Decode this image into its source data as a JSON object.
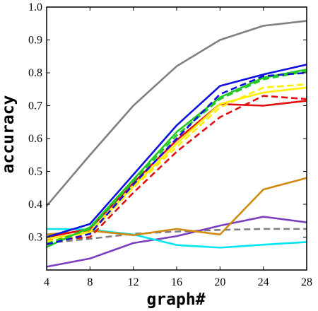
{
  "chart_data": {
    "type": "line",
    "title": "",
    "xlabel": "graph#",
    "ylabel": "accuracy",
    "x": [
      4,
      8,
      12,
      16,
      20,
      24,
      28
    ],
    "xlim": [
      4,
      28
    ],
    "ylim": [
      0.2,
      1.0
    ],
    "xticks": [
      4,
      8,
      12,
      16,
      20,
      24,
      28
    ],
    "yticks": [
      0.3,
      0.4,
      0.5,
      0.6,
      0.7,
      0.8,
      0.9,
      1.0
    ],
    "grid": false,
    "legend": "none",
    "series": [
      {
        "color": "#808080",
        "dash": "solid",
        "values": [
          0.395,
          0.55,
          0.7,
          0.82,
          0.9,
          0.943,
          0.958
        ]
      },
      {
        "color": "#808080",
        "dash": "dashed",
        "values": [
          0.282,
          0.295,
          0.31,
          0.317,
          0.322,
          0.325,
          0.325
        ]
      },
      {
        "color": "#7b3fbf",
        "dash": "solid",
        "values": [
          0.21,
          0.235,
          0.282,
          0.303,
          0.335,
          0.362,
          0.345
        ]
      },
      {
        "color": "#00e5ee",
        "dash": "solid",
        "values": [
          0.325,
          0.323,
          0.308,
          0.276,
          0.268,
          0.277,
          0.285
        ]
      },
      {
        "color": "#d08a10",
        "dash": "solid",
        "values": [
          0.308,
          0.32,
          0.306,
          0.325,
          0.308,
          0.445,
          0.48
        ]
      },
      {
        "color": "#e01010",
        "dash": "solid",
        "values": [
          0.3,
          0.325,
          0.465,
          0.595,
          0.705,
          0.7,
          0.715
        ]
      },
      {
        "color": "#e01010",
        "dash": "dashed",
        "values": [
          0.29,
          0.3,
          0.435,
          0.56,
          0.665,
          0.73,
          0.72
        ]
      },
      {
        "color": "#ffee00",
        "dash": "solid",
        "values": [
          0.295,
          0.315,
          0.455,
          0.585,
          0.705,
          0.74,
          0.755
        ]
      },
      {
        "color": "#ffee00",
        "dash": "dashed",
        "values": [
          0.288,
          0.31,
          0.45,
          0.575,
          0.695,
          0.755,
          0.765
        ]
      },
      {
        "color": "#22c922",
        "dash": "solid",
        "values": [
          0.27,
          0.33,
          0.475,
          0.62,
          0.725,
          0.785,
          0.81
        ]
      },
      {
        "color": "#22c922",
        "dash": "dashed",
        "values": [
          0.28,
          0.325,
          0.47,
          0.61,
          0.72,
          0.78,
          0.805
        ]
      },
      {
        "color": "#1010e0",
        "dash": "dashed",
        "values": [
          0.278,
          0.31,
          0.46,
          0.6,
          0.735,
          0.79,
          0.8
        ]
      },
      {
        "color": "#1010e0",
        "dash": "solid",
        "values": [
          0.3,
          0.34,
          0.49,
          0.64,
          0.76,
          0.795,
          0.825
        ]
      }
    ]
  }
}
